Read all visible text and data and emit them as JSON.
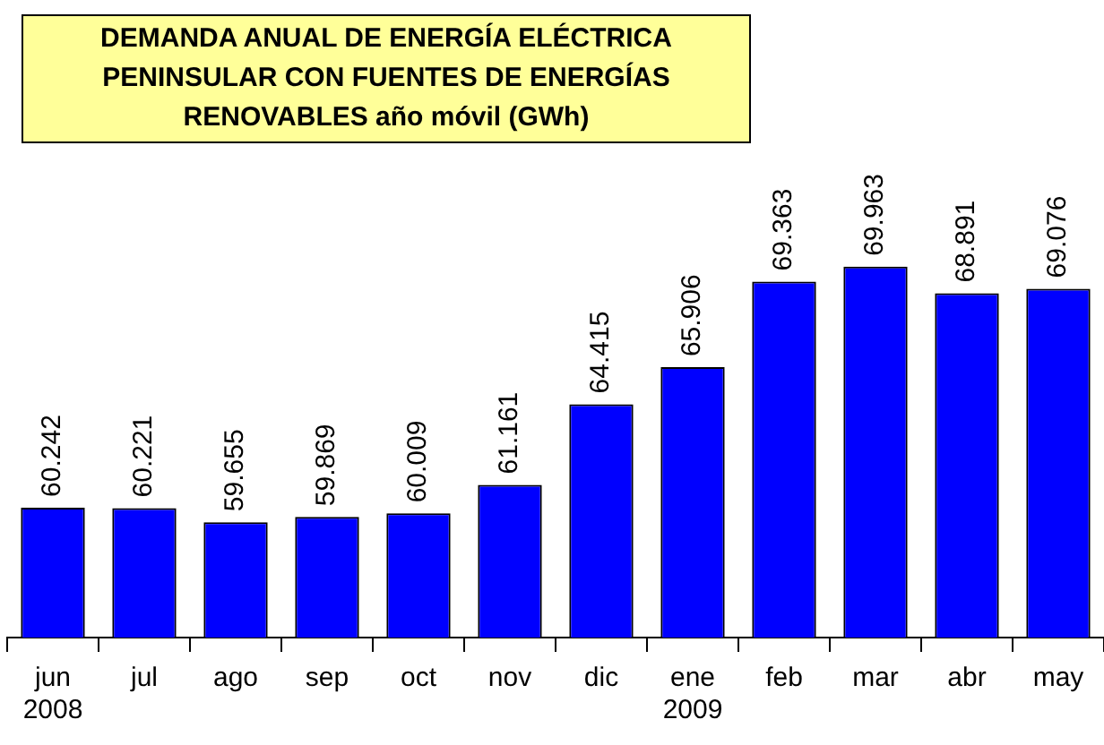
{
  "chart_data": {
    "type": "bar",
    "title": "DEMANDA ANUAL DE ENERGÍA ELÉCTRICA\nPENINSULAR CON FUENTES DE ENERGÍAS\nRENOVABLES año móvil (GWh)",
    "categories": [
      "jun 2008",
      "jul",
      "ago",
      "sep",
      "oct",
      "nov",
      "dic",
      "ene 2009",
      "feb",
      "mar",
      "abr",
      "may"
    ],
    "values": [
      60242,
      60221,
      59655,
      59869,
      60009,
      61161,
      64415,
      65906,
      69363,
      69963,
      68891,
      69076
    ],
    "value_labels": [
      "60.242",
      "60.221",
      "59.655",
      "59.869",
      "60.009",
      "61.161",
      "64.415",
      "65.906",
      "69.363",
      "69.963",
      "68.891",
      "69.076"
    ],
    "color": "#0000ff",
    "ylim": [
      55000,
      80000
    ],
    "tick_labels": "x",
    "grid": false,
    "legend": false
  }
}
